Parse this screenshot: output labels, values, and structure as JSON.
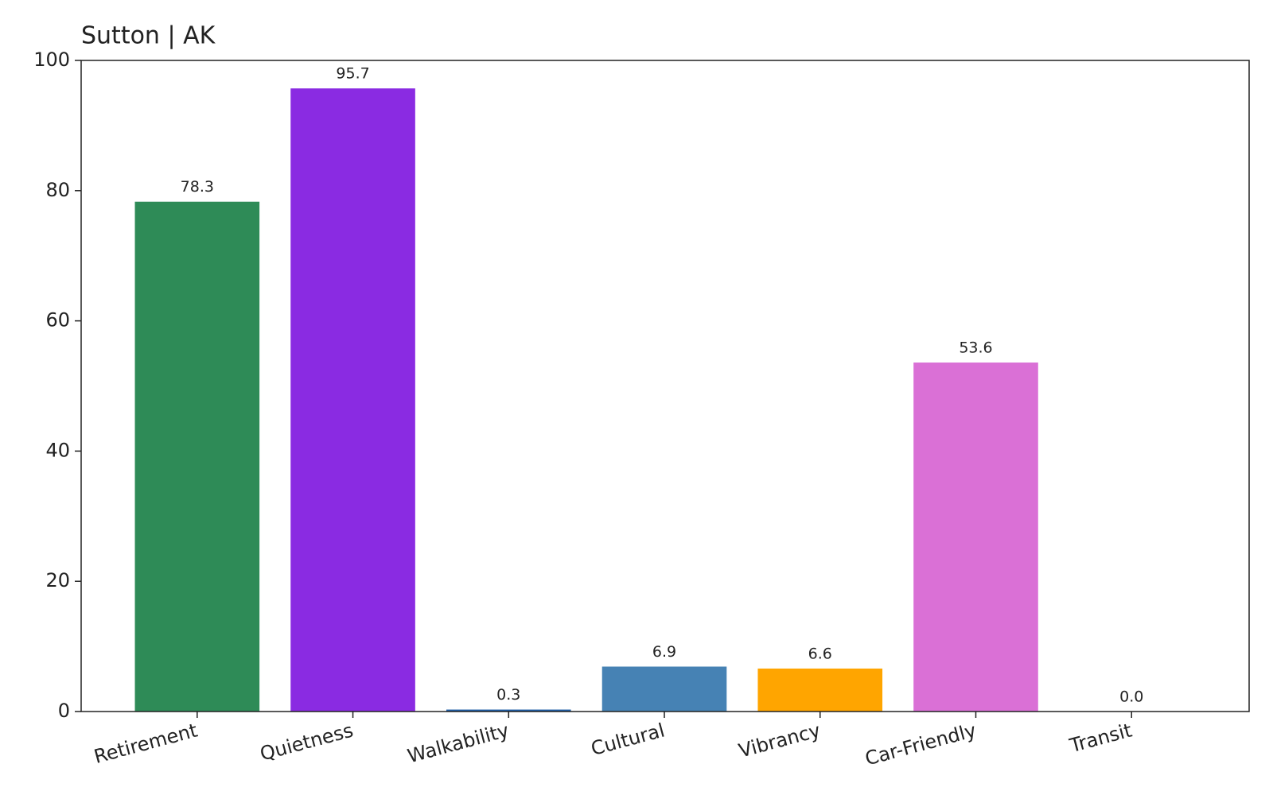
{
  "chart_data": {
    "type": "bar",
    "title": "Sutton | AK",
    "categories": [
      "Retirement",
      "Quietness",
      "Walkability",
      "Cultural",
      "Vibrancy",
      "Car-Friendly",
      "Transit"
    ],
    "values": [
      78.3,
      95.7,
      0.3,
      6.9,
      6.6,
      53.6,
      0
    ],
    "value_labels": [
      "78.3",
      "95.7",
      "0.3",
      "6.9",
      "6.6",
      "53.6",
      "0.0"
    ],
    "colors": [
      "#2e8b57",
      "#8a2be2",
      "#1f5fa8",
      "#4682b4",
      "#ffa500",
      "#da70d6",
      "#808080"
    ],
    "ylim": [
      0,
      100
    ],
    "yticks": [
      0,
      20,
      40,
      60,
      80,
      100
    ],
    "grid": false
  }
}
